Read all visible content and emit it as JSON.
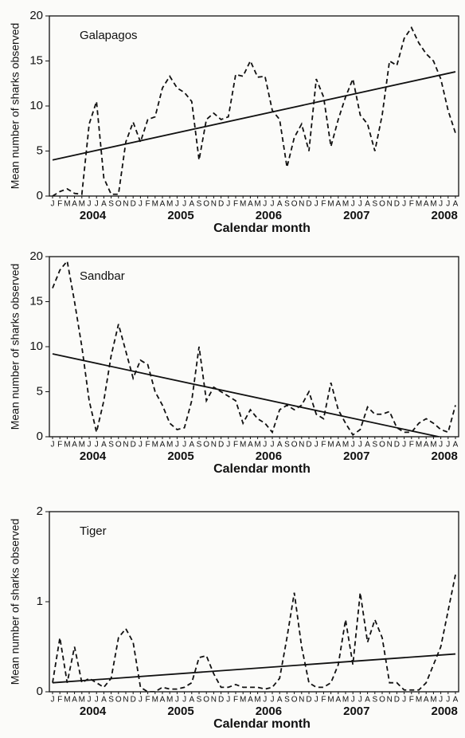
{
  "chart_data": [
    {
      "type": "line",
      "title": "Galapagos",
      "y_label": "Mean number of sharks observed",
      "x_label": "Calendar month",
      "categories": [
        "J",
        "F",
        "M",
        "A",
        "M",
        "J",
        "J",
        "A",
        "S",
        "O",
        "N",
        "D",
        "J",
        "F",
        "M",
        "A",
        "M",
        "J",
        "J",
        "A",
        "S",
        "O",
        "N",
        "D",
        "J",
        "F",
        "M",
        "A",
        "M",
        "J",
        "J",
        "A",
        "S",
        "O",
        "N",
        "D",
        "J",
        "F",
        "M",
        "A",
        "M",
        "J",
        "J",
        "A",
        "S",
        "O",
        "N",
        "D",
        "J",
        "F",
        "M",
        "A",
        "M",
        "J",
        "J",
        "A"
      ],
      "years": [
        "2004",
        "2005",
        "2006",
        "2007",
        "2008"
      ],
      "series": [
        {
          "color": "#111111",
          "dashed": true,
          "values": [
            0,
            0.5,
            0.8,
            0.3,
            0.2,
            8,
            10.5,
            2,
            0.2,
            0.2,
            6,
            8.2,
            6,
            8.5,
            8.8,
            12,
            13.3,
            12,
            11.5,
            10.5,
            4,
            8.5,
            9.2,
            8.5,
            8.8,
            13.5,
            13.3,
            15,
            13.2,
            13.3,
            9.5,
            8.5,
            3.2,
            6.5,
            8,
            5,
            13,
            11,
            5.5,
            8.5,
            11,
            13,
            9,
            8,
            5,
            9,
            15,
            14.5,
            17.5,
            18.7,
            17,
            15.8,
            15,
            13,
            9.5,
            7
          ]
        }
      ],
      "trend": {
        "color": "#111111",
        "values": [
          4,
          13.8
        ]
      },
      "ylim": [
        0,
        20
      ],
      "yticks": [
        0,
        5,
        10,
        15,
        20
      ]
    },
    {
      "type": "line",
      "title": "Sandbar",
      "y_label": "Mean number of sharks observed",
      "x_label": "Calendar month",
      "categories": [
        "J",
        "F",
        "M",
        "A",
        "M",
        "J",
        "J",
        "A",
        "S",
        "O",
        "N",
        "D",
        "J",
        "F",
        "M",
        "A",
        "M",
        "J",
        "J",
        "A",
        "S",
        "O",
        "N",
        "D",
        "J",
        "F",
        "M",
        "A",
        "M",
        "J",
        "J",
        "A",
        "S",
        "O",
        "N",
        "D",
        "J",
        "F",
        "M",
        "A",
        "M",
        "J",
        "J",
        "A",
        "S",
        "O",
        "N",
        "D",
        "J",
        "F",
        "M",
        "A",
        "M",
        "J",
        "J",
        "A"
      ],
      "years": [
        "2004",
        "2005",
        "2006",
        "2007",
        "2008"
      ],
      "series": [
        {
          "color": "#111111",
          "dashed": true,
          "values": [
            16.5,
            18.5,
            19.5,
            15,
            10,
            4,
            0.5,
            4,
            9,
            12.5,
            9.5,
            6.5,
            8.5,
            8,
            5,
            3.5,
            1.5,
            0.8,
            1,
            4,
            10,
            4,
            5.5,
            5,
            4.5,
            4,
            1.5,
            3,
            2,
            1.5,
            0.5,
            3,
            3.5,
            3,
            3.5,
            5,
            2.5,
            2,
            6,
            3,
            1.5,
            0.2,
            0.8,
            3.3,
            2.5,
            2.5,
            2.8,
            1,
            0.5,
            0.5,
            1.5,
            2,
            1.5,
            0.8,
            0.5,
            3.5
          ]
        }
      ],
      "trend": {
        "color": "#111111",
        "values": [
          9.2,
          -0.4
        ]
      },
      "ylim": [
        0,
        20
      ],
      "yticks": [
        0,
        5,
        10,
        15,
        20
      ]
    },
    {
      "type": "line",
      "title": "Tiger",
      "y_label": "Mean number of sharks observed",
      "x_label": "Calendar month",
      "categories": [
        "J",
        "F",
        "M",
        "A",
        "M",
        "J",
        "J",
        "A",
        "S",
        "O",
        "N",
        "D",
        "J",
        "F",
        "M",
        "A",
        "M",
        "J",
        "J",
        "A",
        "S",
        "O",
        "N",
        "D",
        "J",
        "F",
        "M",
        "A",
        "M",
        "J",
        "J",
        "A",
        "S",
        "O",
        "N",
        "D",
        "J",
        "F",
        "M",
        "A",
        "M",
        "J",
        "J",
        "A",
        "S",
        "O",
        "N",
        "D",
        "J",
        "F",
        "M",
        "A",
        "M",
        "J",
        "J",
        "A"
      ],
      "years": [
        "2004",
        "2005",
        "2006",
        "2007",
        "2008"
      ],
      "series": [
        {
          "color": "#111111",
          "dashed": true,
          "values": [
            0.1,
            0.6,
            0.1,
            0.5,
            0.1,
            0.15,
            0.1,
            0.05,
            0.15,
            0.6,
            0.7,
            0.55,
            0.05,
            0,
            0,
            0.05,
            0.03,
            0.03,
            0.05,
            0.1,
            0.38,
            0.4,
            0.2,
            0.05,
            0.05,
            0.08,
            0.05,
            0.05,
            0.05,
            0.03,
            0.05,
            0.15,
            0.6,
            1.1,
            0.5,
            0.1,
            0.05,
            0.05,
            0.1,
            0.3,
            0.8,
            0.3,
            1.1,
            0.55,
            0.8,
            0.6,
            0.1,
            0.1,
            0.02,
            0.02,
            0.02,
            0.1,
            0.3,
            0.5,
            0.9,
            1.3
          ]
        }
      ],
      "trend": {
        "color": "#111111",
        "values": [
          0.1,
          0.42
        ]
      },
      "ylim": [
        0,
        2
      ],
      "yticks": [
        0,
        1,
        2
      ]
    }
  ]
}
